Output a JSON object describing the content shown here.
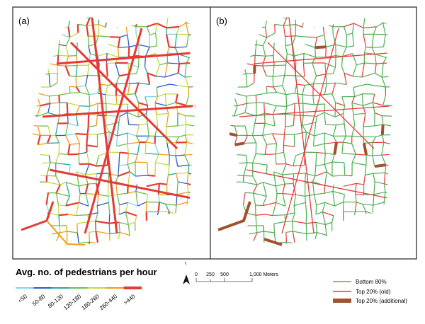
{
  "panels": [
    {
      "label": "(a)"
    },
    {
      "label": "(b)"
    }
  ],
  "legend_left": {
    "title": "Avg. no. of pedestrians per hour",
    "items": [
      "<50",
      "50-80",
      "80-120",
      "120-180",
      "180-260",
      "260-440",
      ">440"
    ]
  },
  "scale_bar": {
    "ticks": [
      "0",
      "250",
      "500",
      "1,000 Meters"
    ]
  },
  "legend_right": {
    "items": [
      "Bottom 80%",
      "Top 20% (old)",
      "Top 20% (additional)"
    ]
  }
}
